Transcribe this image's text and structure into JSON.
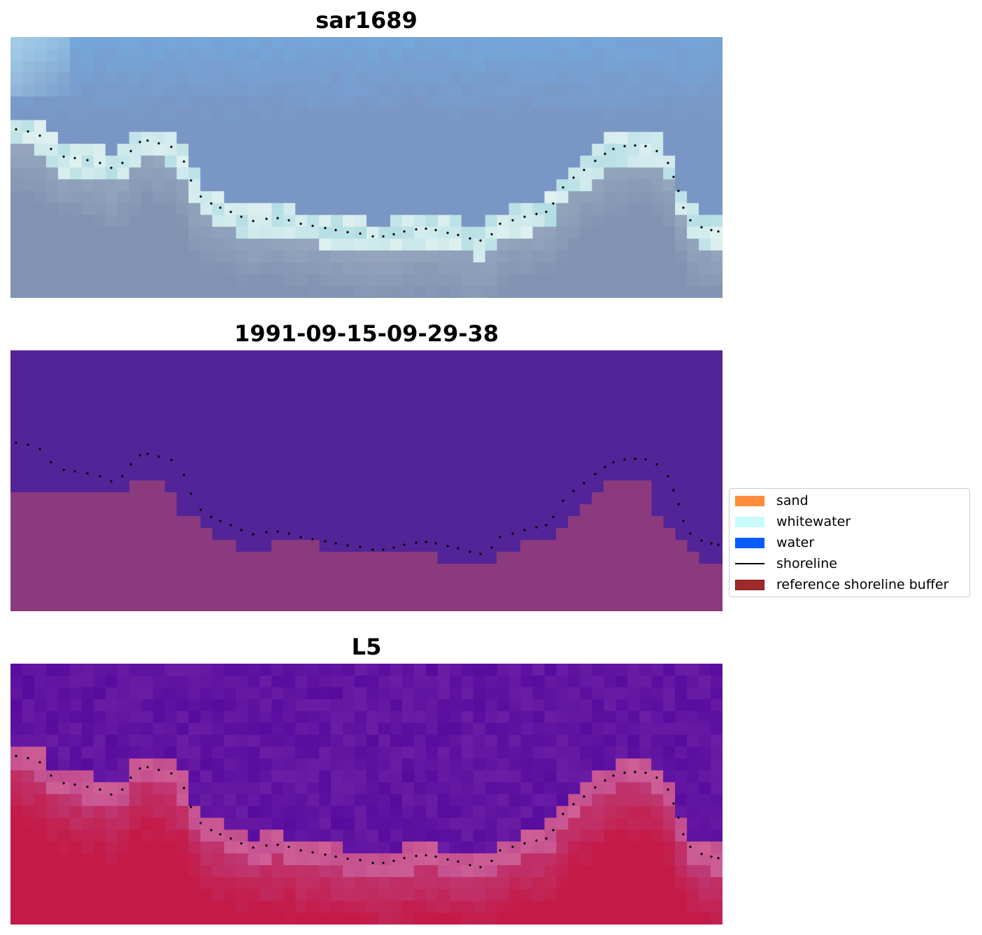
{
  "panels": [
    {
      "title": "sar1689"
    },
    {
      "title": "1991-09-15-09-29-38"
    },
    {
      "title": "L5"
    }
  ],
  "legend": {
    "items": [
      {
        "label": "sand",
        "kind": "patch",
        "color": "#ff8c3a"
      },
      {
        "label": "whitewater",
        "kind": "patch",
        "color": "#c8fbfb"
      },
      {
        "label": "water",
        "kind": "patch",
        "color": "#0a5cff"
      },
      {
        "label": "shoreline",
        "kind": "line",
        "color": "#000000"
      },
      {
        "label": "reference shoreline buffer",
        "kind": "patch",
        "color": "#9e2a2a",
        "edge": "#7a1414"
      }
    ]
  },
  "colors": {
    "classified_background": "#532497",
    "classified_sand_overlay": "#8a3a7d",
    "sky_blue": "#7a9fd0",
    "mndwi_water": "#5a0c9e",
    "mndwi_land": "#c41a48"
  }
}
